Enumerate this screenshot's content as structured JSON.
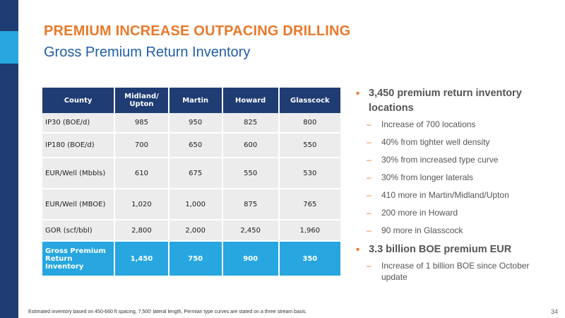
{
  "title": "PREMIUM INCREASE OUTPACING DRILLING",
  "subtitle": "Gross Premium Return Inventory",
  "table": {
    "headers": [
      "County",
      "Midland/ Upton",
      "Martin",
      "Howard",
      "Glasscock"
    ],
    "rows": [
      {
        "label": "IP30 (BOE/d)",
        "values": [
          "985",
          "950",
          "825",
          "800"
        ]
      },
      {
        "label": "IP180 (BOE/d)",
        "values": [
          "700",
          "650",
          "600",
          "550"
        ]
      },
      {
        "label": "EUR/Well (Mbbls)",
        "values": [
          "610",
          "675",
          "550",
          "530"
        ]
      },
      {
        "label": "EUR/Well (MBOE)",
        "values": [
          "1,020",
          "1,000",
          "875",
          "765"
        ]
      },
      {
        "label": "GOR (scf/bbl)",
        "values": [
          "2,800",
          "2,000",
          "2,450",
          "1,960"
        ]
      },
      {
        "label": "Gross Premium Return Inventory",
        "values": [
          "1,450",
          "750",
          "900",
          "350"
        ]
      }
    ]
  },
  "bullets": [
    {
      "text": "3,450 premium return inventory locations",
      "subs": [
        "Increase of 700 locations",
        "40% from tighter well density",
        "30% from increased type curve",
        "30% from longer laterals",
        "410 more in Martin/Midland/Upton",
        "200 more in Howard",
        "90 more in Glasscock"
      ]
    },
    {
      "text": "3.3 billion BOE premium EUR",
      "subs": [
        "Increase of 1 billion BOE since October update"
      ]
    }
  ],
  "bullet_glyph": "•",
  "dash_glyph": "–",
  "footnote": "Estimated inventory based on 450-660 ft spacing, 7,500' lateral length,  Permian type curves are stated on a three stream basis.",
  "page_number": "34",
  "colors": {
    "navy": "#1f3c73",
    "blue": "#27a6e0",
    "orange": "#e8792b",
    "title_blue": "#1f5ea8",
    "cell_gray": "#ececec"
  }
}
